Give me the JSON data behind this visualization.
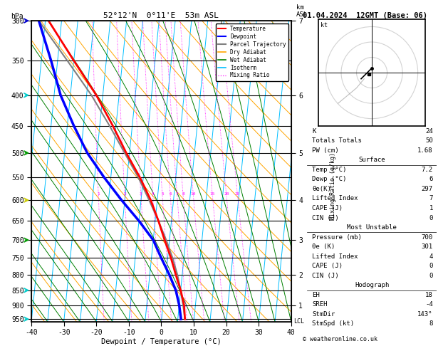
{
  "title_left": "52°12'N  0°11'E  53m ASL",
  "title_right": "01.04.2024  12GMT (Base: 06)",
  "xlabel": "Dewpoint / Temperature (°C)",
  "ylabel_left": "hPa",
  "pressure_levels": [
    300,
    350,
    400,
    450,
    500,
    550,
    600,
    650,
    700,
    750,
    800,
    850,
    900,
    950
  ],
  "temp_min": -40,
  "temp_max": 40,
  "p_min": 300,
  "p_max": 960,
  "km_labels": [
    "1",
    "2",
    "3",
    "4",
    "5",
    "6",
    "7"
  ],
  "km_pressures": [
    900,
    800,
    700,
    600,
    500,
    400,
    300
  ],
  "mixing_ratio_values": [
    1,
    2,
    3,
    4,
    5,
    6,
    7,
    8,
    10,
    15,
    20,
    25
  ],
  "temp_color": "#ff0000",
  "dewpoint_color": "#0000ff",
  "parcel_color": "#808080",
  "dry_adiabat_color": "#ffa500",
  "wet_adiabat_color": "#008000",
  "isotherm_color": "#00bfff",
  "mixing_ratio_color": "#ff00ff",
  "snd_pres": [
    950,
    900,
    850,
    800,
    750,
    700,
    650,
    600,
    550,
    500,
    450,
    400,
    350,
    300
  ],
  "snd_temp": [
    7.2,
    6.5,
    5.0,
    3.0,
    1.0,
    -1.5,
    -4.0,
    -7.0,
    -11.0,
    -16.0,
    -21.0,
    -27.0,
    -35.0,
    -44.0
  ],
  "snd_dewp": [
    6.0,
    5.0,
    3.5,
    1.0,
    -2.0,
    -5.0,
    -10.0,
    -16.0,
    -22.0,
    -28.0,
    -33.0,
    -38.0,
    -42.0,
    -47.0
  ],
  "parcel_temp": [
    7.2,
    6.2,
    5.0,
    3.5,
    1.5,
    -1.0,
    -4.0,
    -7.5,
    -11.5,
    -16.5,
    -22.0,
    -28.5,
    -37.0,
    -47.0
  ],
  "legend_items": [
    "Temperature",
    "Dewpoint",
    "Parcel Trajectory",
    "Dry Adiabat",
    "Wet Adiabat",
    "Isotherm",
    "Mixing Ratio"
  ],
  "box1_items": [
    [
      "K",
      "24"
    ],
    [
      "Totals Totals",
      "50"
    ],
    [
      "PW (cm)",
      "1.68"
    ]
  ],
  "box2_header": "Surface",
  "box2_items": [
    [
      "Temp (°C)",
      "7.2"
    ],
    [
      "Dewp (°C)",
      "6"
    ],
    [
      "θe(K)",
      "297"
    ],
    [
      "Lifted Index",
      "7"
    ],
    [
      "CAPE (J)",
      "1"
    ],
    [
      "CIN (J)",
      "0"
    ]
  ],
  "box3_header": "Most Unstable",
  "box3_items": [
    [
      "Pressure (mb)",
      "700"
    ],
    [
      "θe (K)",
      "301"
    ],
    [
      "Lifted Index",
      "4"
    ],
    [
      "CAPE (J)",
      "0"
    ],
    [
      "CIN (J)",
      "0"
    ]
  ],
  "box4_header": "Hodograph",
  "box4_items": [
    [
      "EH",
      "18"
    ],
    [
      "SREH",
      "-4"
    ],
    [
      "StmDir",
      "143°"
    ],
    [
      "StmSpd (kt)",
      "8"
    ]
  ],
  "copyright": "© weatheronline.co.uk",
  "wind_colors": [
    "#0000cc",
    "#00cccc",
    "#009900",
    "#cccc00",
    "#009900",
    "#00cccc",
    "#00cccc"
  ],
  "wind_pressures": [
    300,
    400,
    500,
    600,
    700,
    850,
    950
  ]
}
